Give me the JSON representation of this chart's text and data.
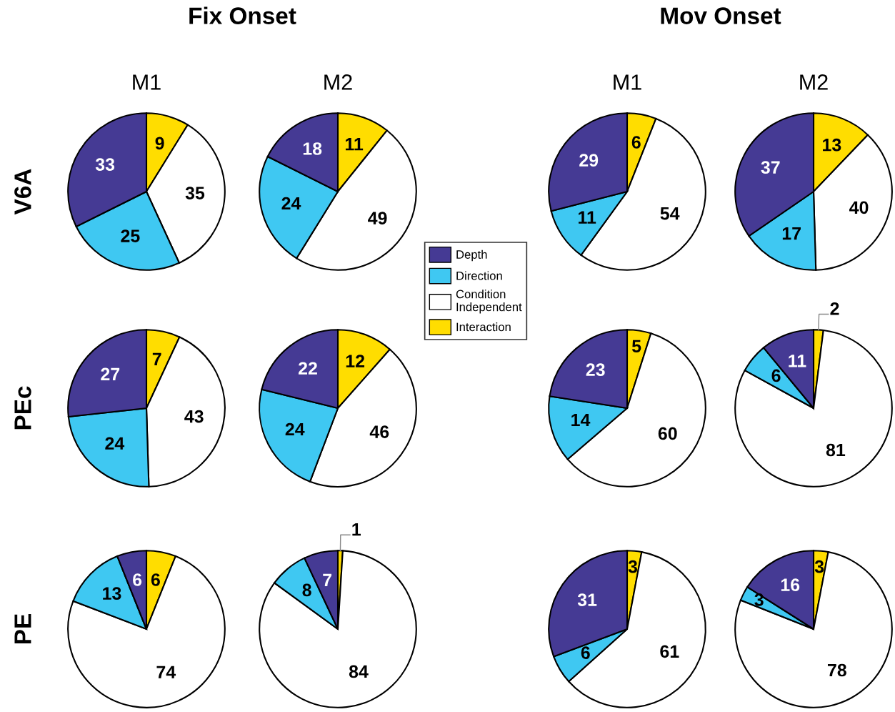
{
  "chart_data": [
    {
      "type": "pie",
      "title": "M1",
      "ylabel": "V6A",
      "annotations": [
        "Fix Onset"
      ],
      "categories": [
        "Interaction",
        "Condition\nIndependent",
        "Direction",
        "Depth"
      ],
      "values": [
        9,
        35,
        25,
        33
      ],
      "colors": [
        "#ffdd00",
        "#ffffff",
        "#3fc8f2",
        "#453a94"
      ],
      "data_labels": true,
      "legend": "right"
    },
    {
      "type": "pie",
      "title": "M2",
      "categories": [
        null,
        null,
        null,
        null
      ],
      "values": [
        11,
        49,
        24,
        18
      ],
      "colors": [
        "#ffdd00",
        "#ffffff",
        "#3fc8f2",
        "#453a94"
      ],
      "data_labels": true
    },
    {
      "type": "pie",
      "title": "M1",
      "annotations": [
        "Mov Onset"
      ],
      "categories": [
        null,
        null,
        null,
        null
      ],
      "values": [
        6,
        54,
        11,
        29
      ],
      "colors": [
        "#ffdd00",
        "#ffffff",
        "#3fc8f2",
        "#453a94"
      ],
      "data_labels": true
    },
    {
      "type": "pie",
      "title": "M2",
      "categories": [
        null,
        null,
        null,
        null
      ],
      "values": [
        13,
        40,
        17,
        37
      ],
      "colors": [
        "#ffdd00",
        "#ffffff",
        "#3fc8f2",
        "#453a94"
      ],
      "data_labels": true
    },
    {
      "type": "pie",
      "ylabel": "PEc",
      "categories": [
        null,
        null,
        null,
        null
      ],
      "values": [
        7,
        43,
        24,
        27
      ],
      "colors": [
        "#ffdd00",
        "#ffffff",
        "#3fc8f2",
        "#453a94"
      ],
      "data_labels": true
    },
    {
      "type": "pie",
      "categories": [
        null,
        null,
        null,
        null
      ],
      "values": [
        12,
        46,
        24,
        22
      ],
      "colors": [
        "#ffdd00",
        "#ffffff",
        "#3fc8f2",
        "#453a94"
      ],
      "data_labels": true
    },
    {
      "type": "pie",
      "categories": [
        null,
        null,
        null,
        null
      ],
      "values": [
        5,
        60,
        14,
        23
      ],
      "colors": [
        "#ffdd00",
        "#ffffff",
        "#3fc8f2",
        "#453a94"
      ],
      "data_labels": true
    },
    {
      "type": "pie",
      "categories": [
        null,
        null,
        null,
        null
      ],
      "values": [
        2,
        81,
        6,
        11
      ],
      "colors": [
        "#ffdd00",
        "#ffffff",
        "#3fc8f2",
        "#453a94"
      ],
      "data_labels": true
    },
    {
      "type": "pie",
      "ylabel": "PE",
      "categories": [
        null,
        null,
        null,
        null
      ],
      "values": [
        6,
        74,
        13,
        6
      ],
      "colors": [
        "#ffdd00",
        "#ffffff",
        "#3fc8f2",
        "#453a94"
      ],
      "data_labels": true
    },
    {
      "type": "pie",
      "categories": [
        null,
        null,
        null,
        null
      ],
      "values": [
        1,
        84,
        8,
        7
      ],
      "colors": [
        "#ffdd00",
        "#ffffff",
        "#3fc8f2",
        "#453a94"
      ],
      "data_labels": true
    },
    {
      "type": "pie",
      "categories": [
        null,
        null,
        null,
        null
      ],
      "values": [
        3,
        61,
        6,
        31
      ],
      "colors": [
        "#ffdd00",
        "#ffffff",
        "#3fc8f2",
        "#453a94"
      ],
      "data_labels": true
    },
    {
      "type": "pie",
      "categories": [
        null,
        null,
        null,
        null
      ],
      "values": [
        3,
        78,
        3,
        16
      ],
      "colors": [
        "#ffdd00",
        "#ffffff",
        "#3fc8f2",
        "#453a94"
      ],
      "data_labels": true
    }
  ]
}
